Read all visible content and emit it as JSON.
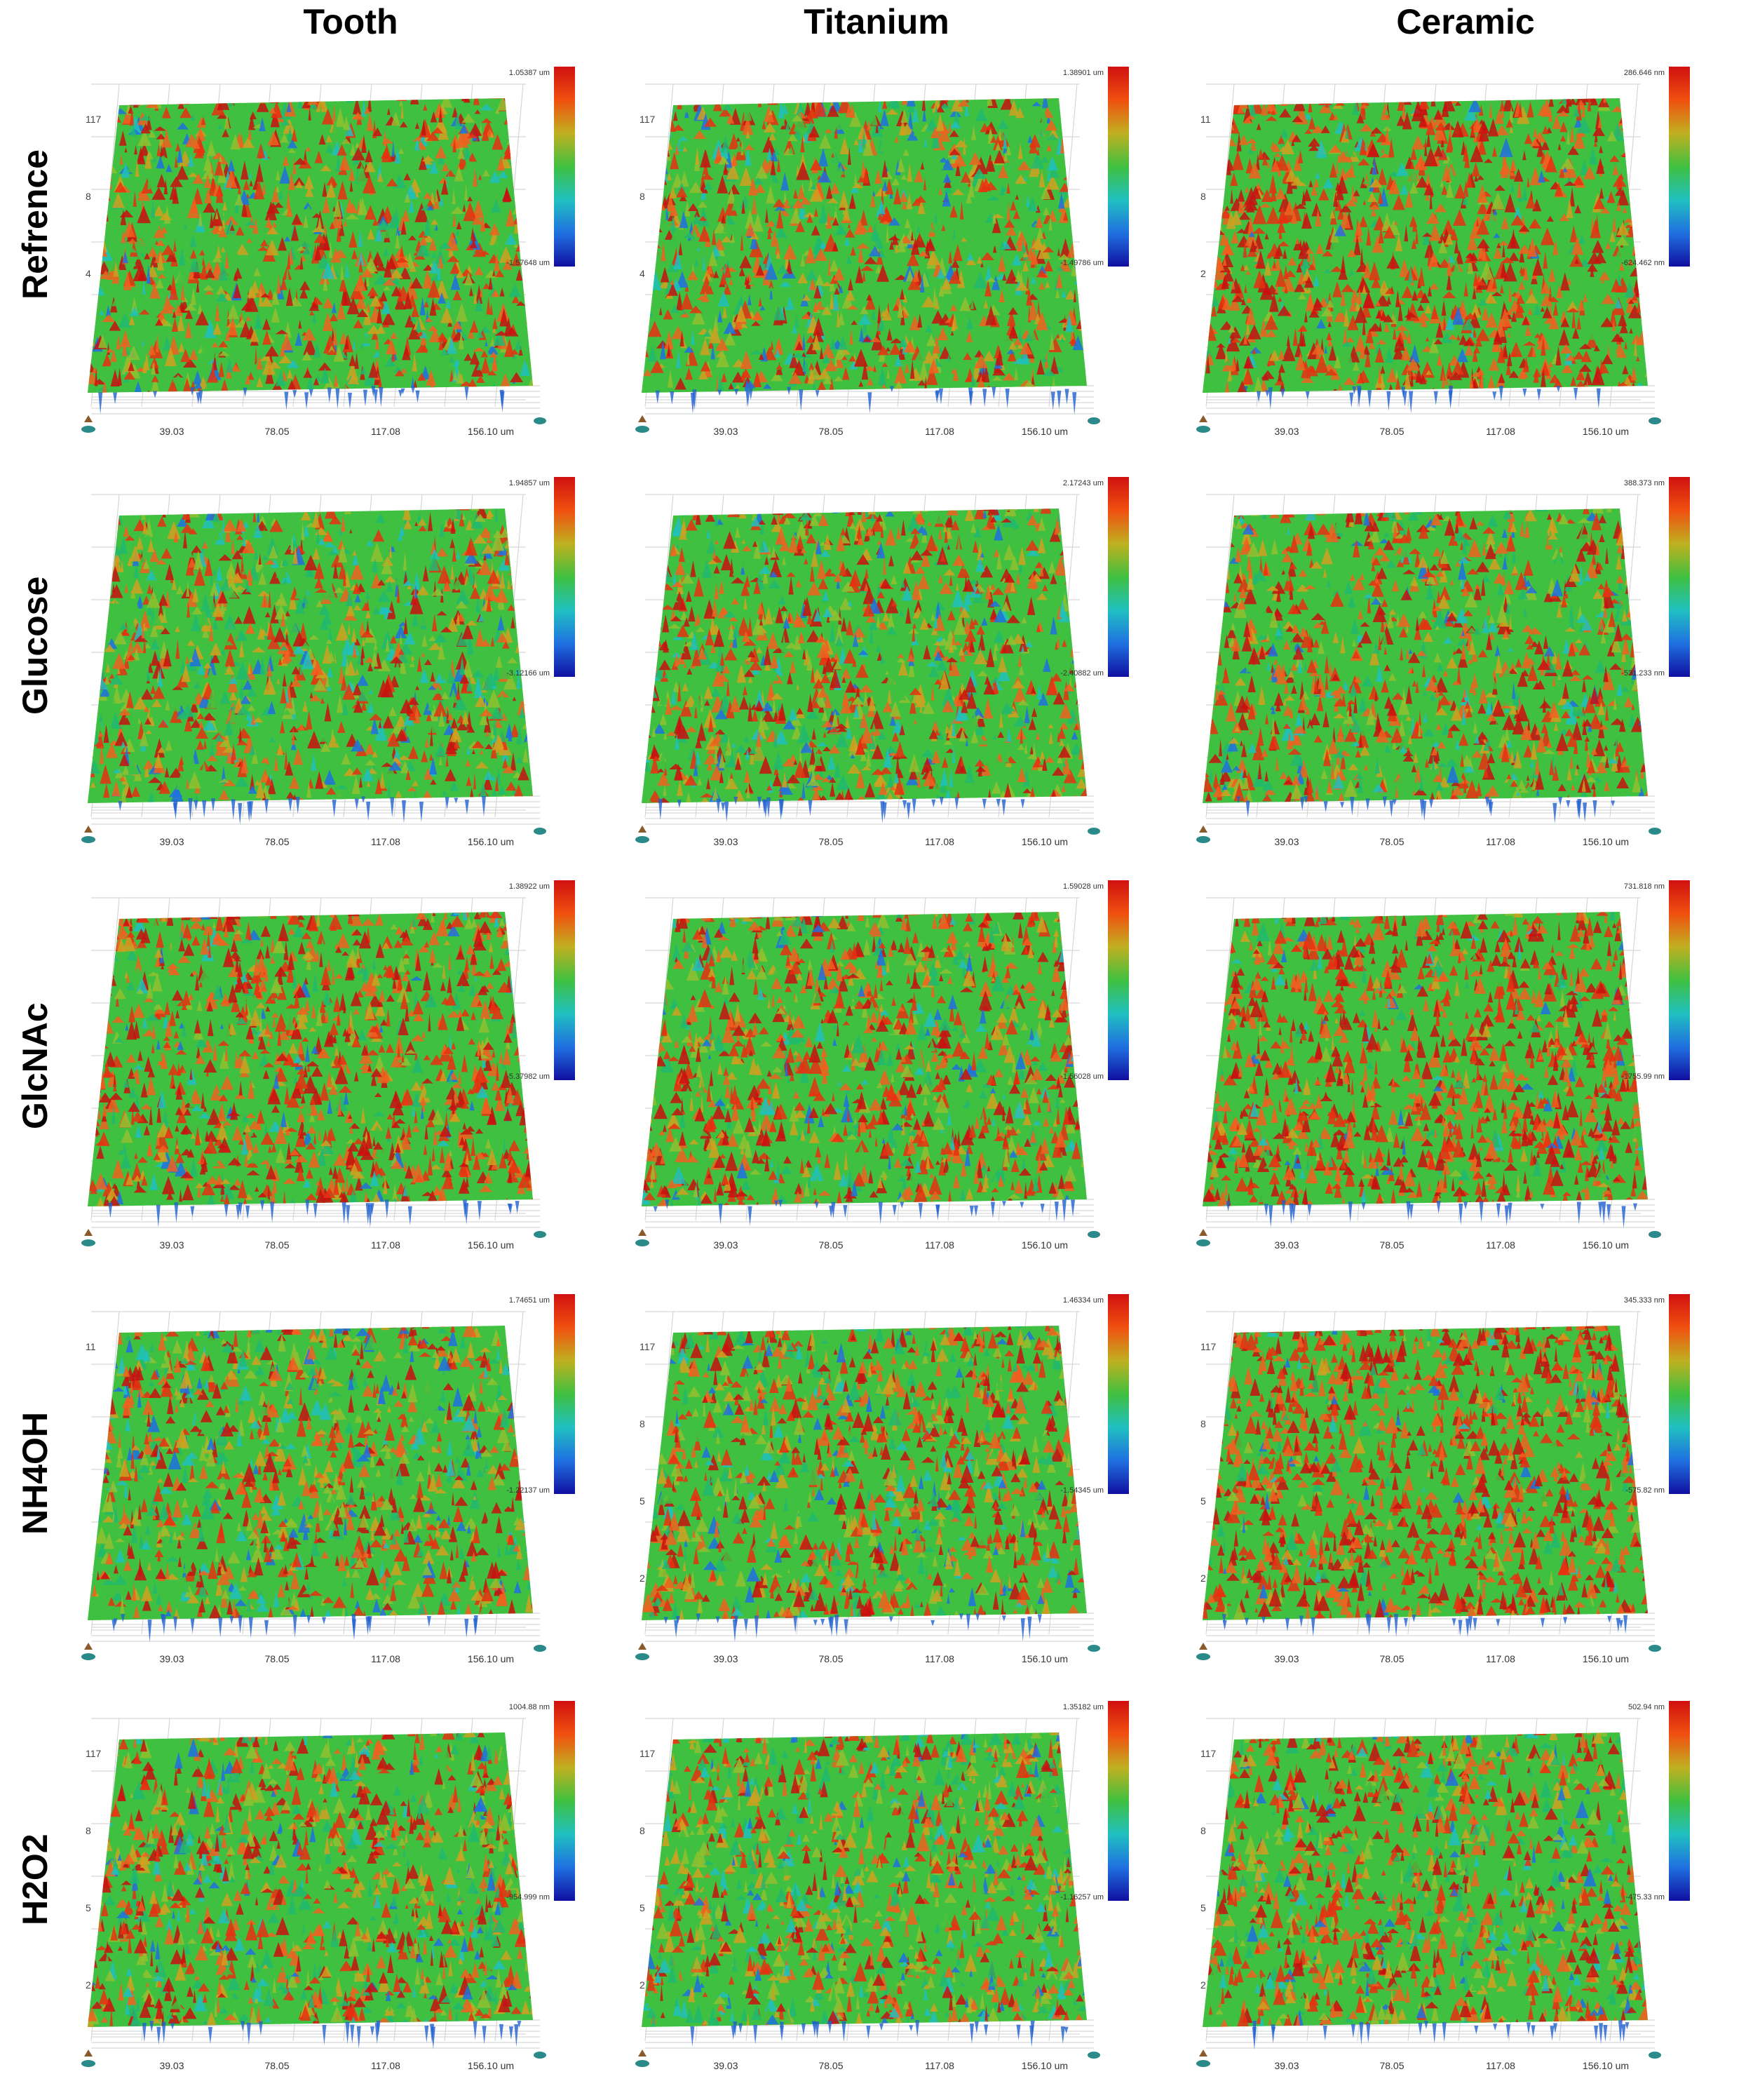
{
  "columns": [
    "Tooth",
    "Titanium",
    "Ceramic"
  ],
  "rows": [
    "Refrence",
    "Glucose",
    "GlcNAc",
    "NH4OH",
    "H2O2"
  ],
  "x_ticks": [
    "39.03",
    "78.05",
    "117.08",
    "156.10 um"
  ],
  "colorbar": [
    "#d01010",
    "#f05010",
    "#c0b020",
    "#40c040",
    "#20c0c0",
    "#2070e0",
    "#1010a0"
  ],
  "panels": [
    [
      {
        "max": "1.05387 um",
        "min": "-1.57648 um",
        "ylabels": [
          "117",
          "8",
          "4"
        ],
        "color_bias": 0.55
      },
      {
        "max": "1.38901 um",
        "min": "-1.49786 um",
        "ylabels": [
          "117",
          "8",
          "4"
        ],
        "color_bias": 0.45
      },
      {
        "max": "286.646 nm",
        "min": "-624.462 nm",
        "ylabels": [
          "11",
          "8",
          "2"
        ],
        "color_bias": 0.8
      }
    ],
    [
      {
        "max": "1.94857 um",
        "min": "-3.12166 um",
        "ylabels": [],
        "color_bias": 0.4
      },
      {
        "max": "2.17243 um",
        "min": "-2.40882 um",
        "ylabels": [],
        "color_bias": 0.5
      },
      {
        "max": "388.373 nm",
        "min": "-531.233 nm",
        "ylabels": [],
        "color_bias": 0.55
      }
    ],
    [
      {
        "max": "1.38922 um",
        "min": "-5.37982 um",
        "ylabels": [],
        "color_bias": 0.7
      },
      {
        "max": "1.59028 um",
        "min": "-1.56028 um",
        "ylabels": [],
        "color_bias": 0.6
      },
      {
        "max": "731.818 nm",
        "min": "-1755.99 nm",
        "ylabels": [],
        "color_bias": 0.8
      }
    ],
    [
      {
        "max": "1.74651 um",
        "min": "-1.22137 um",
        "ylabels": [
          "11"
        ],
        "color_bias": 0.45
      },
      {
        "max": "1.46334 um",
        "min": "-1.54345 um",
        "ylabels": [
          "117",
          "8",
          "5",
          "2"
        ],
        "color_bias": 0.55
      },
      {
        "max": "345.333 nm",
        "min": "-575.82 nm",
        "ylabels": [
          "117",
          "8",
          "5",
          "2"
        ],
        "color_bias": 0.8
      }
    ],
    [
      {
        "max": "1004.88 nm",
        "min": "-954.999 nm",
        "ylabels": [
          "117",
          "8",
          "5",
          "2"
        ],
        "color_bias": 0.45
      },
      {
        "max": "1.35182 um",
        "min": "-1.16257 um",
        "ylabels": [
          "117",
          "8",
          "5",
          "2"
        ],
        "color_bias": 0.4
      },
      {
        "max": "502.94 nm",
        "min": "-475.33 nm",
        "ylabels": [
          "117",
          "8",
          "5",
          "2"
        ],
        "color_bias": 0.55
      }
    ]
  ]
}
